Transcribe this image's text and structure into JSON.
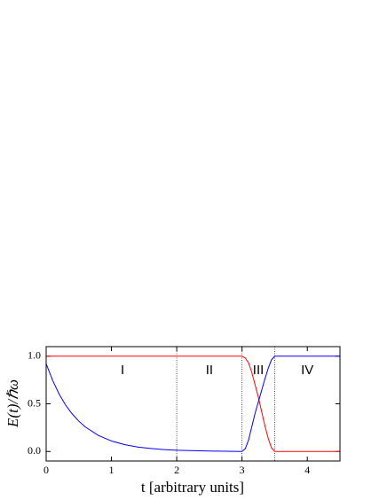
{
  "chart_data": {
    "type": "line",
    "xlabel": "t [arbitrary units]",
    "ylabel": "E(t)/ℏω",
    "x": [
      0,
      0.1,
      0.2,
      0.3,
      0.4,
      0.5,
      0.6,
      0.8,
      1.0,
      1.2,
      1.4,
      1.6,
      1.8,
      2.0,
      2.5,
      3.0,
      3.05,
      3.1,
      3.15,
      3.2,
      3.25,
      3.3,
      3.35,
      3.4,
      3.45,
      3.5,
      4.0,
      4.5
    ],
    "series": [
      {
        "color": "#ff0000",
        "values": [
          1,
          1,
          1,
          1,
          1,
          1,
          1,
          1,
          1,
          1,
          1,
          1,
          1,
          1,
          1,
          1,
          0.98,
          0.93,
          0.83,
          0.7,
          0.57,
          0.42,
          0.27,
          0.14,
          0.04,
          0,
          0,
          0
        ]
      },
      {
        "color": "#0000ff",
        "values": [
          0.92,
          0.745,
          0.6,
          0.485,
          0.393,
          0.318,
          0.257,
          0.168,
          0.11,
          0.072,
          0.047,
          0.031,
          0.02,
          0.013,
          0.005,
          0,
          0.03,
          0.12,
          0.26,
          0.4,
          0.52,
          0.64,
          0.76,
          0.87,
          0.96,
          1,
          1,
          1
        ]
      }
    ],
    "region_boundaries": [
      2,
      3,
      3.5
    ],
    "annotations": [
      {
        "text": "I",
        "x": 1.17
      },
      {
        "text": "II",
        "x": 2.5
      },
      {
        "text": "III",
        "x": 3.25
      },
      {
        "text": "IV",
        "x": 4.0
      }
    ],
    "xlim": [
      0,
      4.5
    ],
    "xticks": [
      0,
      1,
      2,
      3,
      4
    ],
    "ylim": [
      -0.1,
      1.1
    ],
    "yticks": [
      {
        "value": 0,
        "label": "0.0"
      },
      0.5,
      {
        "value": 1,
        "label": "1.0"
      }
    ]
  }
}
